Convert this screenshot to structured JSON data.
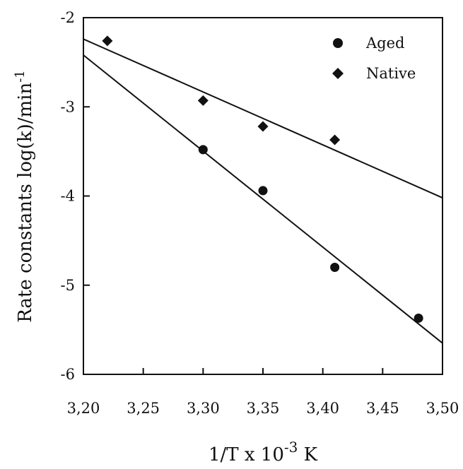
{
  "chart_data": {
    "type": "scatter",
    "xlabel": "1/T x 10",
    "xlabel_sup": "-3",
    "xlabel_unit": " K",
    "ylabel": "Rate constants log(k)/min",
    "ylabel_sup": "-1",
    "xlim": [
      3.2,
      3.5
    ],
    "ylim": [
      -6,
      -2
    ],
    "x_ticks": [
      "3,20",
      "3,25",
      "3,30",
      "3,35",
      "3,40",
      "3,45",
      "3,50"
    ],
    "y_ticks": [
      "-2",
      "-3",
      "-4",
      "-5",
      "-6"
    ],
    "grid": false,
    "legend_position": "top-right",
    "series": [
      {
        "name": "Aged",
        "marker": "circle",
        "x": [
          3.3,
          3.35,
          3.41,
          3.48
        ],
        "y": [
          -3.48,
          -3.94,
          -4.8,
          -5.37
        ],
        "fit": {
          "x": [
            3.2,
            3.5
          ],
          "y": [
            -2.42,
            -5.65
          ]
        }
      },
      {
        "name": "Native",
        "marker": "diamond",
        "x": [
          3.22,
          3.3,
          3.35,
          3.41
        ],
        "y": [
          -2.26,
          -2.93,
          -3.22,
          -3.37
        ],
        "fit": {
          "x": [
            3.2,
            3.5
          ],
          "y": [
            -2.24,
            -4.02
          ]
        }
      }
    ]
  }
}
